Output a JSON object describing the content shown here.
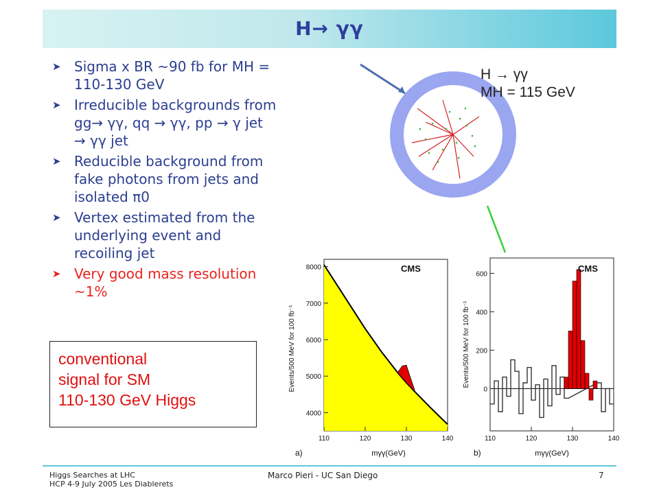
{
  "header": {
    "title": "H→ γγ"
  },
  "bullets": [
    {
      "text": "Sigma x BR ~90 fb for MH = 110-130 GeV",
      "color": "#2b3e8f"
    },
    {
      "text": "Irreducible backgrounds from gg→ γγ, qq → γγ, pp → γ jet → γγ jet",
      "color": "#2b3e8f"
    },
    {
      "text": "Reducible background from fake photons from jets and isolated π0",
      "color": "#2b3e8f"
    },
    {
      "text": "Vertex estimated from the underlying event and recoiling jet",
      "color": "#2b3e8f"
    },
    {
      "text": "Very good mass resolution ~1%",
      "color": "#e8231f"
    }
  ],
  "callout": {
    "line1": "conventional",
    "line2": "signal for SM",
    "line3": "110-130 GeV Higgs",
    "color": "#e01010"
  },
  "event_display": {
    "line1": "H → γγ",
    "line2": "MH = 115 GeV"
  },
  "footer": {
    "left_line1": "Higgs Searches at LHC",
    "left_line2": "HCP 4-9 July 2005 Les Diablerets",
    "center": "Marco Pieri - UC San Diego",
    "page": "7"
  },
  "chart_data": [
    {
      "type": "area",
      "panel_label": "a)",
      "badge": "CMS",
      "xlabel": "mγγ(GeV)",
      "ylabel": "Events/500 MeV for 100 fb⁻¹",
      "xlim": [
        110,
        140
      ],
      "ylim": [
        3500,
        8200
      ],
      "xticks": [
        110,
        120,
        130,
        140
      ],
      "yticks": [
        4000,
        5000,
        6000,
        7000,
        8000
      ],
      "background": {
        "x": [
          110,
          112,
          114,
          116,
          118,
          120,
          122,
          124,
          126,
          128,
          130,
          132,
          134,
          136,
          138,
          140
        ],
        "y": [
          8050,
          7700,
          7350,
          7000,
          6650,
          6300,
          5980,
          5660,
          5370,
          5080,
          4820,
          4580,
          4350,
          4120,
          3900,
          3680
        ]
      },
      "signal": {
        "x": [
          128,
          129,
          130,
          131,
          132
        ],
        "y": [
          5120,
          5280,
          5300,
          4950,
          4620
        ]
      },
      "colors": {
        "background_fill": "#ffff00",
        "signal_fill": "#e00000"
      }
    },
    {
      "type": "bar",
      "panel_label": "b)",
      "badge": "CMS",
      "xlabel": "mγγ(GeV)",
      "ylabel": "Events/500 MeV for 100 fb⁻¹",
      "xlim": [
        110,
        140
      ],
      "ylim": [
        -220,
        680
      ],
      "xticks": [
        110,
        120,
        130,
        140
      ],
      "yticks": [
        0,
        200,
        400,
        600
      ],
      "residuals": {
        "x": [
          110,
          111,
          112,
          113,
          114,
          115,
          116,
          117,
          118,
          119,
          120,
          121,
          122,
          123,
          124,
          125,
          126,
          127,
          128,
          136,
          137,
          138,
          139
        ],
        "y": [
          -80,
          40,
          -120,
          60,
          -40,
          150,
          90,
          -130,
          30,
          110,
          -60,
          20,
          -150,
          50,
          -90,
          120,
          -30,
          60,
          -50,
          30,
          -120,
          0,
          -80
        ]
      },
      "signal": {
        "x": [
          128,
          129,
          130,
          131,
          132,
          133,
          134,
          135
        ],
        "y": [
          60,
          300,
          560,
          620,
          250,
          80,
          -60,
          40
        ]
      },
      "colors": {
        "signal_fill": "#e00000"
      }
    }
  ]
}
